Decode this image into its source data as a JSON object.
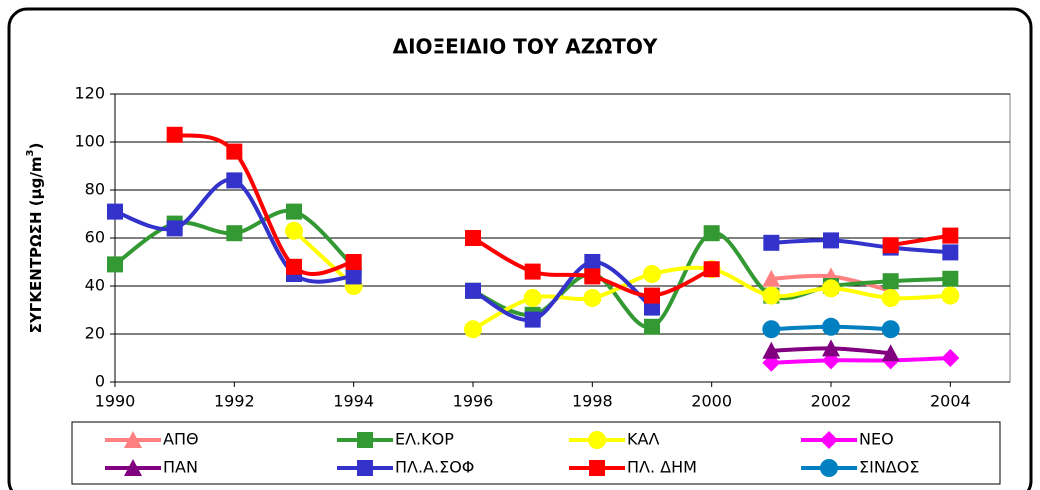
{
  "chart_data": {
    "type": "line",
    "title": "ΔΙΟΞΕΙΔΙΟ ΤΟΥ ΑΖΩΤΟΥ",
    "y_label": {
      "text": "ΣΥΓΚΕΝΤΡΩΣΗ (μg/m",
      "sup": "3",
      "end": ")"
    },
    "x": [
      1990,
      1991,
      1992,
      1993,
      1994,
      1995,
      1996,
      1997,
      1998,
      1999,
      2000,
      2001,
      2002,
      2003,
      2004
    ],
    "xlim": [
      1990,
      2005
    ],
    "xticks": [
      1990,
      1992,
      1994,
      1996,
      1998,
      2000,
      2002,
      2004
    ],
    "ylim": [
      0,
      120
    ],
    "yticks": [
      0,
      20,
      40,
      60,
      80,
      100,
      120
    ],
    "grid": true,
    "legend": "bottom",
    "series": [
      {
        "name": "ΑΠΘ",
        "color": "#FF8080",
        "marker": "triangle",
        "values": [
          null,
          null,
          null,
          null,
          null,
          null,
          null,
          null,
          null,
          null,
          null,
          43,
          44,
          38,
          null
        ]
      },
      {
        "name": "ΕΛ.ΚΟΡ",
        "color": "#339933",
        "marker": "square",
        "values": [
          49,
          66,
          62,
          71,
          48,
          null,
          38,
          28,
          45,
          23,
          62,
          36,
          40,
          42,
          43
        ]
      },
      {
        "name": "ΚΑΛ",
        "color": "#FFFF00",
        "marker": "circle",
        "values": [
          null,
          null,
          null,
          63,
          40,
          null,
          22,
          35,
          35,
          45,
          47,
          36,
          39,
          35,
          36
        ]
      },
      {
        "name": "ΝΕΟ",
        "color": "#FF00FF",
        "marker": "diamond",
        "values": [
          null,
          null,
          null,
          null,
          null,
          null,
          null,
          null,
          null,
          null,
          null,
          8,
          9,
          9,
          10
        ]
      },
      {
        "name": "ΠΑΝ",
        "color": "#800080",
        "marker": "triangle",
        "values": [
          null,
          null,
          null,
          null,
          null,
          null,
          null,
          null,
          null,
          null,
          null,
          13,
          14,
          12,
          null
        ]
      },
      {
        "name": "ΠΛ.Α.ΣΟΦ",
        "color": "#3333CC",
        "marker": "square",
        "values": [
          71,
          64,
          84,
          45,
          44,
          null,
          38,
          26,
          50,
          31,
          null,
          58,
          59,
          56,
          54
        ]
      },
      {
        "name": "ΠΛ. ΔΗΜ",
        "color": "#FF0000",
        "marker": "square",
        "values": [
          null,
          103,
          96,
          48,
          50,
          null,
          60,
          46,
          44,
          36,
          47,
          null,
          null,
          57,
          61
        ]
      },
      {
        "name": "ΣΙΝΔΟΣ",
        "color": "#0080C0",
        "marker": "circle",
        "values": [
          null,
          null,
          null,
          null,
          null,
          null,
          null,
          null,
          null,
          null,
          null,
          22,
          23,
          22,
          null
        ]
      }
    ]
  }
}
